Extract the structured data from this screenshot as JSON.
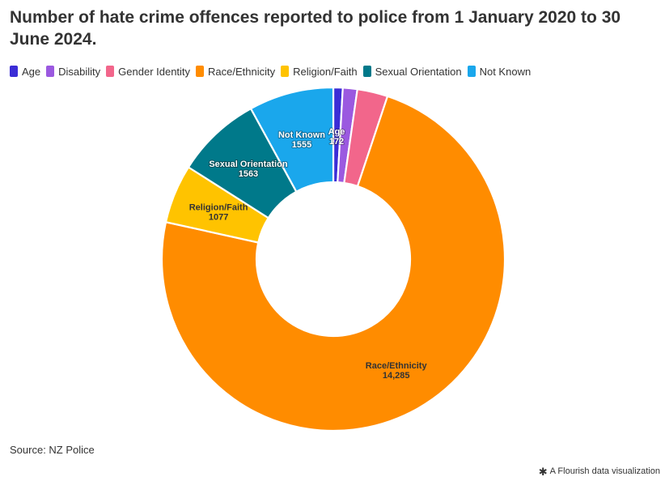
{
  "chart_data": {
    "type": "pie",
    "variant": "donut",
    "title": "Number of hate crime offences reported to police from 1 January 2020 to 30 June 2024.",
    "legend_position": "top-left",
    "categories": [
      "Age",
      "Disability",
      "Gender Identity",
      "Race/Ethnicity",
      "Religion/Faith",
      "Sexual Orientation",
      "Not Known"
    ],
    "values": [
      172,
      265,
      560,
      14285,
      1077,
      1563,
      1555
    ],
    "data_labels": [
      "172",
      "",
      "",
      "14,285",
      "1077",
      "1563",
      "1555"
    ],
    "colors": [
      "#3b2dd6",
      "#9b59e0",
      "#f2668b",
      "#ff8c00",
      "#ffc300",
      "#00798a",
      "#1aa7ec"
    ]
  },
  "source": "Source: NZ Police",
  "credit": "A Flourish data visualization"
}
